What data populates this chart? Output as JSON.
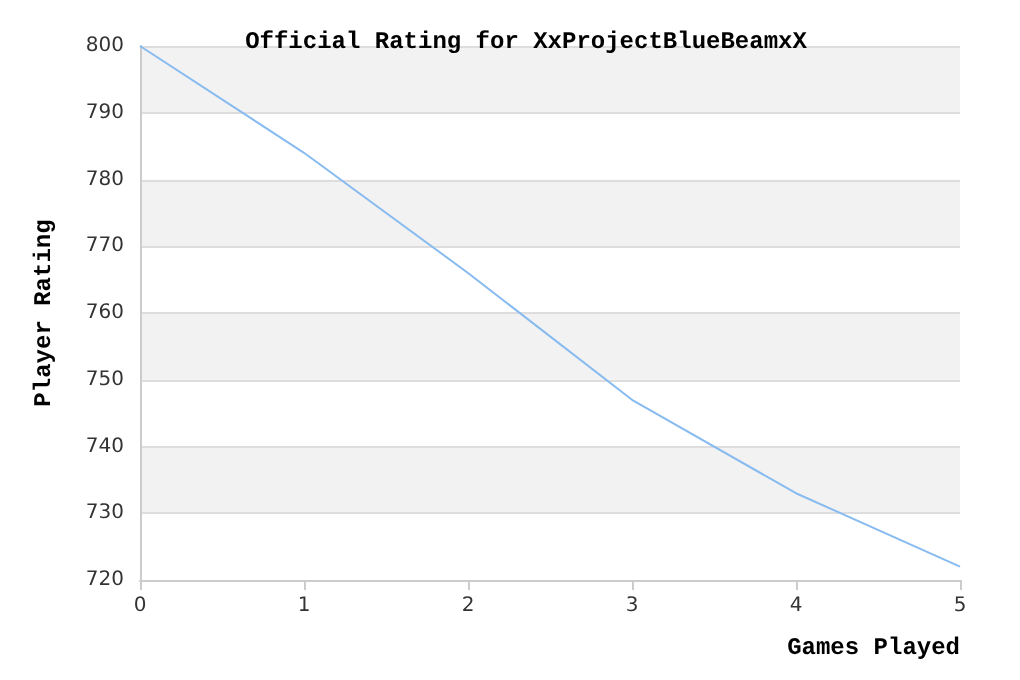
{
  "chart_data": {
    "type": "line",
    "title": "Official Rating for XxProjectBlueBeamxX",
    "xlabel": "Games Played",
    "ylabel": "Player Rating",
    "x": [
      0,
      1,
      2,
      3,
      4,
      5
    ],
    "series": [
      {
        "color": "#88bbf0",
        "values": [
          800,
          784,
          766,
          747,
          733,
          722
        ]
      }
    ],
    "xlim": [
      0,
      5
    ],
    "xticks": [
      0,
      1,
      2,
      3,
      4,
      5
    ],
    "ylim": [
      720,
      800
    ],
    "yticks": [
      720,
      730,
      740,
      750,
      760,
      770,
      780,
      790,
      800
    ],
    "grid": "y",
    "marker": "none"
  }
}
